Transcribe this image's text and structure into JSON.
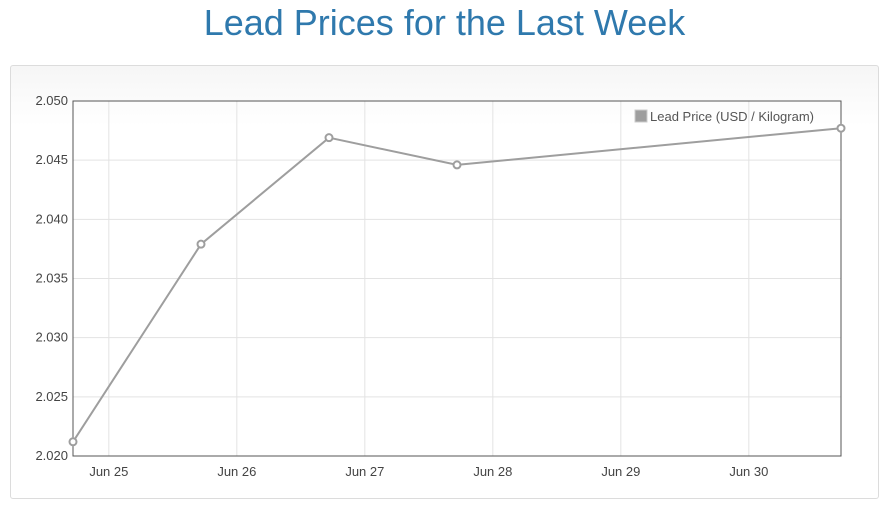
{
  "page": {
    "title": "Lead Prices for the Last Week"
  },
  "chart_data": {
    "type": "line",
    "title": "Lead Prices for the Last Week",
    "xlabel": "",
    "ylabel": "",
    "x_ticks": [
      "Jun 25",
      "Jun 26",
      "Jun 27",
      "Jun 28",
      "Jun 29",
      "Jun 30"
    ],
    "y_ticks": [
      "2.020",
      "2.025",
      "2.030",
      "2.035",
      "2.040",
      "2.045",
      "2.050"
    ],
    "ylim": [
      2.02,
      2.05
    ],
    "xlim_days": [
      24.72,
      30.72
    ],
    "grid": true,
    "legend_position": "top-right",
    "series": [
      {
        "name": "Lead Price (USD / Kilogram)",
        "color": "#9e9e9e",
        "points": [
          {
            "x": "Jun 24 17:00",
            "day": 24.72,
            "y": 2.0212
          },
          {
            "x": "Jun 25 17:00",
            "day": 25.72,
            "y": 2.0379
          },
          {
            "x": "Jun 26 17:00",
            "day": 26.72,
            "y": 2.0469
          },
          {
            "x": "Jun 27 17:00",
            "day": 27.72,
            "y": 2.0446
          },
          {
            "x": "Jun 30 17:00",
            "day": 30.72,
            "y": 2.0477
          }
        ]
      }
    ]
  }
}
